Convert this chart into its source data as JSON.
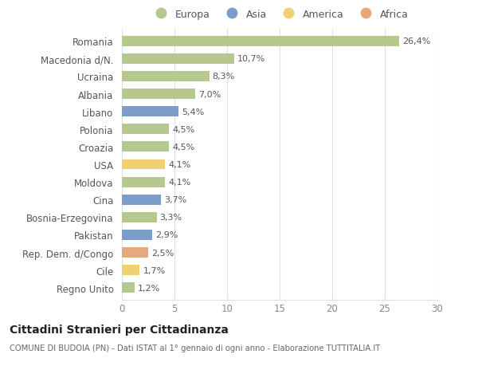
{
  "countries": [
    "Romania",
    "Macedonia d/N.",
    "Ucraina",
    "Albania",
    "Libano",
    "Polonia",
    "Croazia",
    "USA",
    "Moldova",
    "Cina",
    "Bosnia-Erzegovina",
    "Pakistan",
    "Rep. Dem. d/Congo",
    "Cile",
    "Regno Unito"
  ],
  "values": [
    26.4,
    10.7,
    8.3,
    7.0,
    5.4,
    4.5,
    4.5,
    4.1,
    4.1,
    3.7,
    3.3,
    2.9,
    2.5,
    1.7,
    1.2
  ],
  "labels": [
    "26,4%",
    "10,7%",
    "8,3%",
    "7,0%",
    "5,4%",
    "4,5%",
    "4,5%",
    "4,1%",
    "4,1%",
    "3,7%",
    "3,3%",
    "2,9%",
    "2,5%",
    "1,7%",
    "1,2%"
  ],
  "continents": [
    "Europa",
    "Europa",
    "Europa",
    "Europa",
    "Asia",
    "Europa",
    "Europa",
    "America",
    "Europa",
    "Asia",
    "Europa",
    "Asia",
    "Africa",
    "America",
    "Europa"
  ],
  "colors": {
    "Europa": "#b5c98e",
    "Asia": "#7b9dc7",
    "America": "#f0d070",
    "Africa": "#e8a87c"
  },
  "legend_order": [
    "Europa",
    "Asia",
    "America",
    "Africa"
  ],
  "xlim": [
    0,
    30
  ],
  "xticks": [
    0,
    5,
    10,
    15,
    20,
    25,
    30
  ],
  "title": "Cittadini Stranieri per Cittadinanza",
  "subtitle": "COMUNE DI BUDOIA (PN) - Dati ISTAT al 1° gennaio di ogni anno - Elaborazione TUTTITALIA.IT",
  "background_color": "#ffffff",
  "grid_color": "#e0e0e0"
}
